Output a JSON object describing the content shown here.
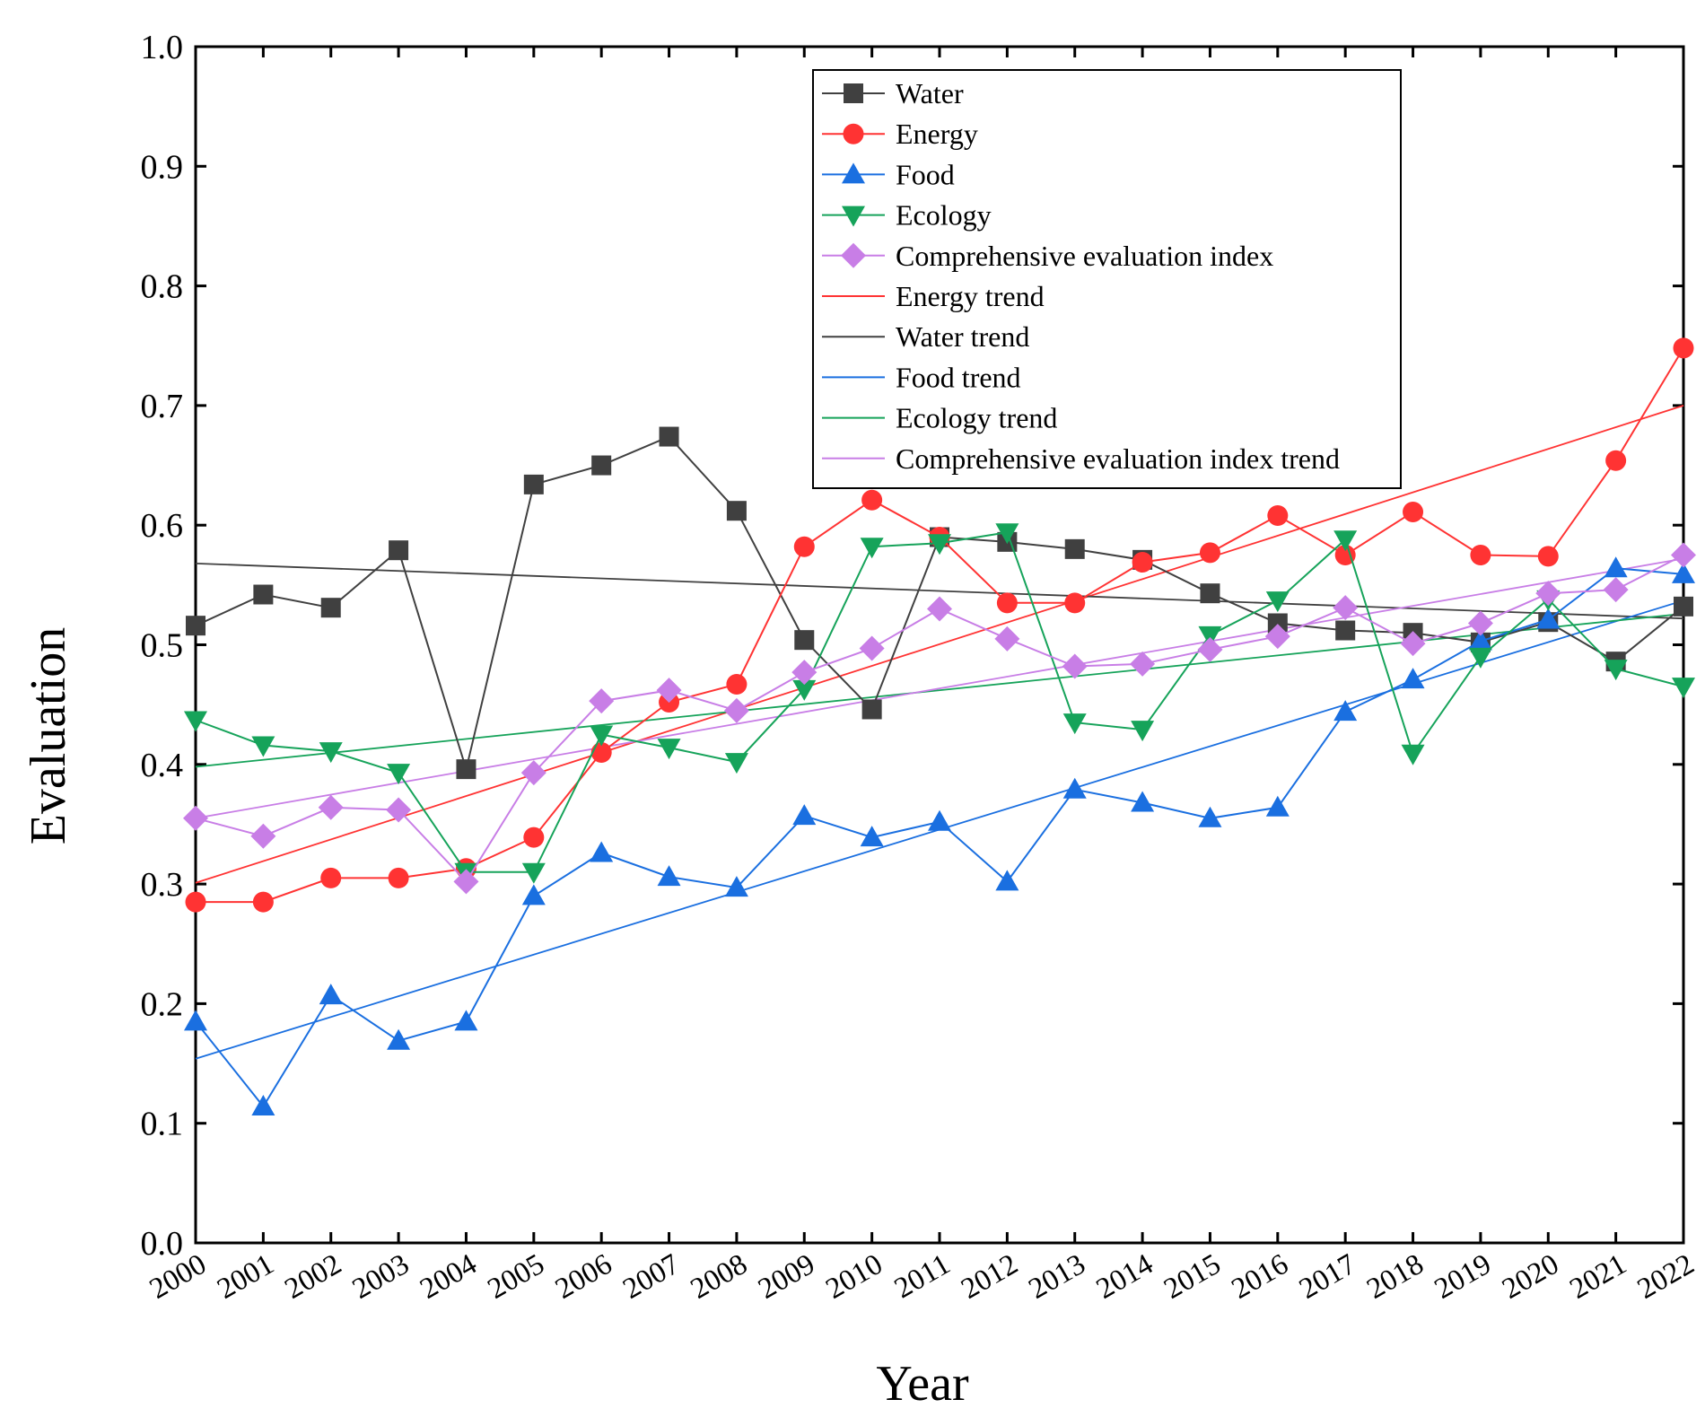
{
  "chart_data": {
    "type": "line",
    "title": "",
    "xlabel": "Year",
    "ylabel": "Evaluation",
    "ylim": [
      0.0,
      1.0
    ],
    "yticks": [
      "0.0",
      "0.1",
      "0.2",
      "0.3",
      "0.4",
      "0.5",
      "0.6",
      "0.7",
      "0.8",
      "0.9",
      "1.0"
    ],
    "legend_position": "top-center",
    "grid": false,
    "categories": [
      "2000",
      "2001",
      "2002",
      "2003",
      "2004",
      "2005",
      "2006",
      "2007",
      "2008",
      "2009",
      "2010",
      "2011",
      "2012",
      "2013",
      "2014",
      "2015",
      "2016",
      "2017",
      "2018",
      "2019",
      "2020",
      "2021",
      "2022"
    ],
    "series": [
      {
        "name": "Water",
        "color": "#404040",
        "marker": "square",
        "values": [
          0.516,
          0.542,
          0.531,
          0.579,
          0.396,
          0.634,
          0.65,
          0.674,
          0.612,
          0.504,
          0.446,
          0.59,
          0.586,
          0.58,
          0.571,
          0.543,
          0.518,
          0.512,
          0.51,
          0.502,
          0.519,
          0.486,
          0.532
        ]
      },
      {
        "name": "Energy",
        "color": "#ff3333",
        "marker": "circle",
        "values": [
          0.285,
          0.285,
          0.305,
          0.305,
          0.313,
          0.339,
          0.41,
          0.452,
          0.467,
          0.582,
          0.621,
          0.59,
          0.535,
          0.535,
          0.569,
          0.577,
          0.608,
          0.575,
          0.611,
          0.575,
          0.574,
          0.654,
          0.748
        ]
      },
      {
        "name": "Food",
        "color": "#1a6fe0",
        "marker": "triangle-up",
        "values": [
          0.185,
          0.114,
          0.207,
          0.169,
          0.185,
          0.29,
          0.326,
          0.306,
          0.297,
          0.357,
          0.339,
          0.352,
          0.302,
          0.379,
          0.368,
          0.355,
          0.364,
          0.444,
          0.471,
          0.503,
          0.521,
          0.564,
          0.559
        ]
      },
      {
        "name": "Ecology",
        "color": "#16a35a",
        "marker": "triangle-down",
        "values": [
          0.437,
          0.416,
          0.411,
          0.393,
          0.31,
          0.31,
          0.425,
          0.414,
          0.402,
          0.463,
          0.582,
          0.585,
          0.594,
          0.435,
          0.429,
          0.508,
          0.537,
          0.588,
          0.409,
          0.49,
          0.538,
          0.48,
          0.465
        ]
      },
      {
        "name": "Comprehensive evaluation index",
        "color": "#c87ee6",
        "marker": "diamond",
        "values": [
          0.355,
          0.34,
          0.364,
          0.362,
          0.302,
          0.393,
          0.453,
          0.462,
          0.445,
          0.477,
          0.497,
          0.53,
          0.505,
          0.482,
          0.484,
          0.496,
          0.507,
          0.531,
          0.501,
          0.518,
          0.543,
          0.546,
          0.575
        ]
      }
    ],
    "trends": [
      {
        "name": "Energy trend",
        "color": "#ff3333",
        "start": 0.301,
        "end": 0.7
      },
      {
        "name": "Water trend",
        "color": "#404040",
        "start": 0.568,
        "end": 0.522
      },
      {
        "name": "Food trend",
        "color": "#1a6fe0",
        "start": 0.154,
        "end": 0.537
      },
      {
        "name": "Ecology trend",
        "color": "#16a35a",
        "start": 0.398,
        "end": 0.526
      },
      {
        "name": "Comprehensive evaluation index trend",
        "color": "#c87ee6",
        "start": 0.355,
        "end": 0.572
      }
    ]
  }
}
